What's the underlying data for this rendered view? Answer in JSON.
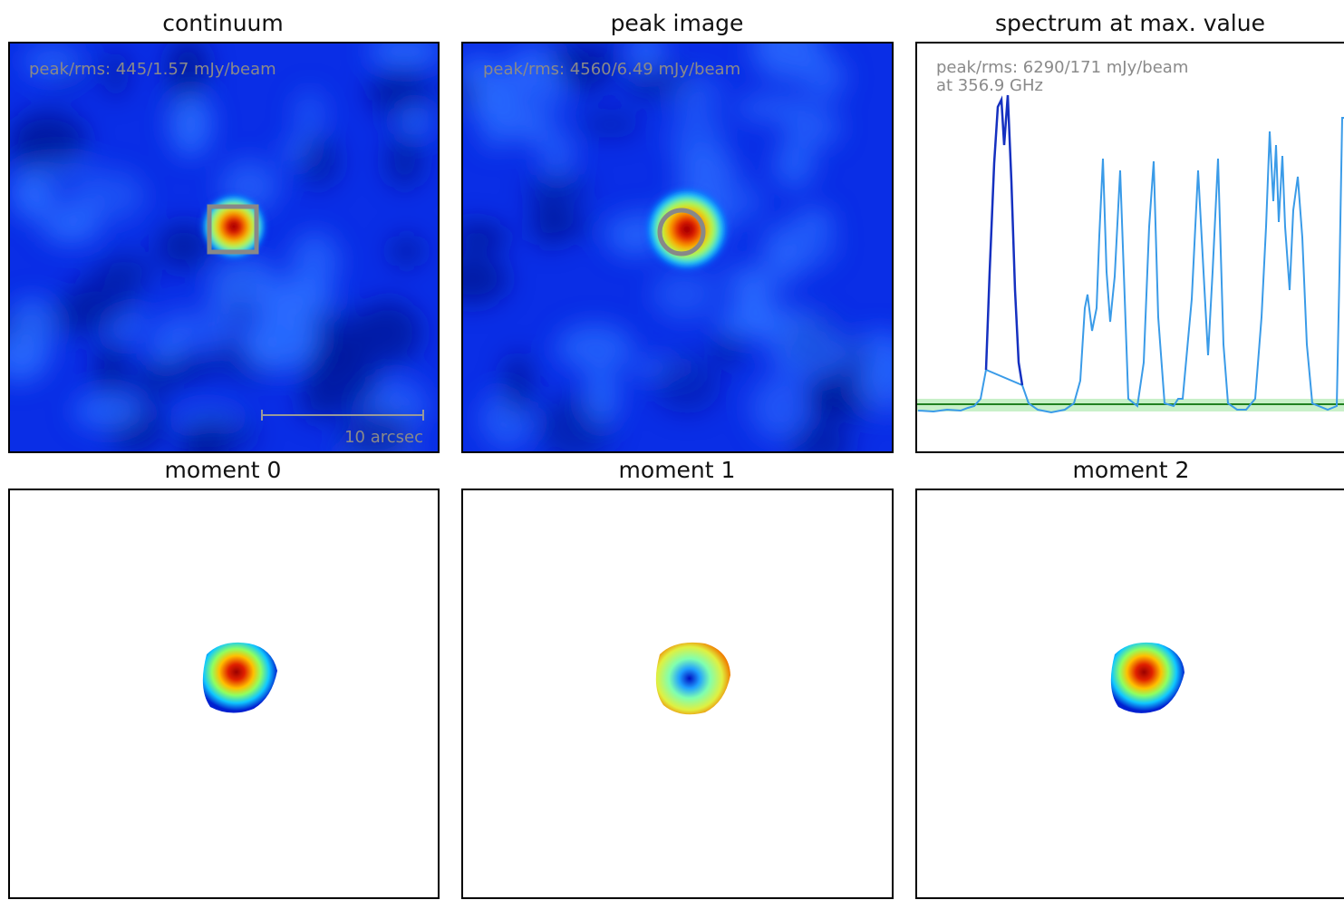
{
  "panels": [
    {
      "title": "continuum",
      "annotation": "peak/rms: 445/1.57 mJy/beam",
      "scale_bar": "10 arcsec"
    },
    {
      "title": "peak image",
      "annotation": "peak/rms: 4560/6.49 mJy/beam"
    },
    {
      "title": "spectrum at max. value",
      "annotation": [
        "peak/rms: 6290/171 mJy/beam",
        "at 356.9 GHz"
      ]
    },
    {
      "title": "moment 0"
    },
    {
      "title": "moment 1"
    },
    {
      "title": "moment 2"
    }
  ]
}
